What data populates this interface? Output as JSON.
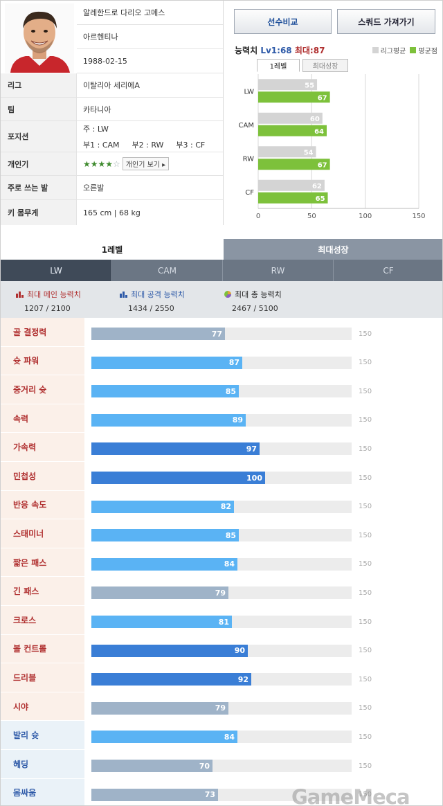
{
  "player": {
    "name": "알레한드로 다리오 고메스",
    "nationality": "아르헨티나",
    "birth": "1988-02-15",
    "rows": [
      {
        "label": "리그",
        "value": "이탈리아 세리에A"
      },
      {
        "label": "팀",
        "value": "카타니아"
      }
    ],
    "position_label": "포지션",
    "main_position": "주 : LW",
    "sub_positions": [
      "부1 : CAM",
      "부2 : RW",
      "부3 : CF"
    ],
    "personal_label": "개인기",
    "personal_stars": 4,
    "personal_stars_max": 5,
    "personal_stars_text": "★★★★",
    "personal_stars_off_text": "☆",
    "personal_button": "개인기 보기 ▸",
    "foot_label": "주로 쓰는 발",
    "foot": "오른발",
    "body_label": "키 몸무게",
    "body": "165 cm | 68 kg"
  },
  "buttons": {
    "compare": "선수비교",
    "squad": "스쿼드 가져가기"
  },
  "ability": {
    "title": "능력치",
    "lv1_label": "Lv1:",
    "lv1": "68",
    "max_label": "최대:",
    "max": "87",
    "legend_league": "리그평균",
    "legend_avg": "평균점",
    "tab_level1": "1레벨",
    "tab_max": "최대성장"
  },
  "chart_data": {
    "type": "bar",
    "orientation": "horizontal",
    "categories": [
      "LW",
      "CAM",
      "RW",
      "CF"
    ],
    "series": [
      {
        "name": "리그평균",
        "values": [
          55,
          60,
          54,
          62
        ],
        "color": "#d4d4d4"
      },
      {
        "name": "평균점",
        "values": [
          67,
          64,
          67,
          65
        ],
        "color": "#7dc13b"
      }
    ],
    "xlim": [
      0,
      150
    ],
    "xticks": [
      0,
      50,
      100,
      150
    ],
    "grid": true,
    "legend": "top-right"
  },
  "level_tabs": [
    "1레벨",
    "최대성장"
  ],
  "active_level_tab": 0,
  "position_tabs": [
    "LW",
    "CAM",
    "RW",
    "CF"
  ],
  "active_position_tab": 0,
  "summary": [
    {
      "label": "최대 메인 능력치",
      "value": "1207 / 2100",
      "color": "#b03030",
      "icon": "bar-chart-icon"
    },
    {
      "label": "최대 공격 능력치",
      "value": "1434 / 2550",
      "color": "#2e5aa8",
      "icon": "bar-chart-icon"
    },
    {
      "label": "최대 총 능력치",
      "value": "2467 / 5100",
      "color": "#222222",
      "icon": "pie-chart-icon"
    }
  ],
  "stats_max": 150,
  "stats_max_label": "150",
  "stats": [
    {
      "name": "골 결정력",
      "value": 77,
      "value_text": "77",
      "bar": "gray",
      "group": "attack"
    },
    {
      "name": "슛 파워",
      "value": 87,
      "value_text": "87",
      "bar": "light",
      "group": "attack"
    },
    {
      "name": "중거리 슛",
      "value": 85,
      "value_text": "85",
      "bar": "light",
      "group": "attack"
    },
    {
      "name": "속력",
      "value": 89,
      "value_text": "89",
      "bar": "light",
      "group": "attack"
    },
    {
      "name": "가속력",
      "value": 97,
      "value_text": "97",
      "bar": "dark",
      "group": "attack"
    },
    {
      "name": "민첩성",
      "value": 100,
      "value_text": "100",
      "bar": "dark",
      "group": "attack"
    },
    {
      "name": "반응 속도",
      "value": 82,
      "value_text": "82",
      "bar": "light",
      "group": "attack"
    },
    {
      "name": "스태미너",
      "value": 85,
      "value_text": "85",
      "bar": "light",
      "group": "attack"
    },
    {
      "name": "짧은 패스",
      "value": 84,
      "value_text": "84",
      "bar": "light",
      "group": "attack"
    },
    {
      "name": "긴 패스",
      "value": 79,
      "value_text": "79",
      "bar": "gray",
      "group": "attack"
    },
    {
      "name": "크로스",
      "value": 81,
      "value_text": "81",
      "bar": "light",
      "group": "attack"
    },
    {
      "name": "볼 컨트롤",
      "value": 90,
      "value_text": "90",
      "bar": "dark",
      "group": "attack"
    },
    {
      "name": "드리블",
      "value": 92,
      "value_text": "92",
      "bar": "dark",
      "group": "attack"
    },
    {
      "name": "시야",
      "value": 79,
      "value_text": "79",
      "bar": "gray",
      "group": "attack"
    },
    {
      "name": "발리 슛",
      "value": 84,
      "value_text": "84",
      "bar": "light",
      "group": "other"
    },
    {
      "name": "헤딩",
      "value": 70,
      "value_text": "70",
      "bar": "gray",
      "group": "other"
    },
    {
      "name": "몸싸움",
      "value": 73,
      "value_text": "73",
      "bar": "gray",
      "group": "other"
    }
  ],
  "colors": {
    "bar_light": "#5ab3f4",
    "bar_dark": "#3a7ed6",
    "bar_gray": "#9fb3c8",
    "label_attack_bg": "#fbf0e9",
    "label_other_bg": "#eaf2f8",
    "label_attack_text": "#b03030",
    "label_other_text": "#2e5aa8"
  },
  "watermark": "GameMeca"
}
